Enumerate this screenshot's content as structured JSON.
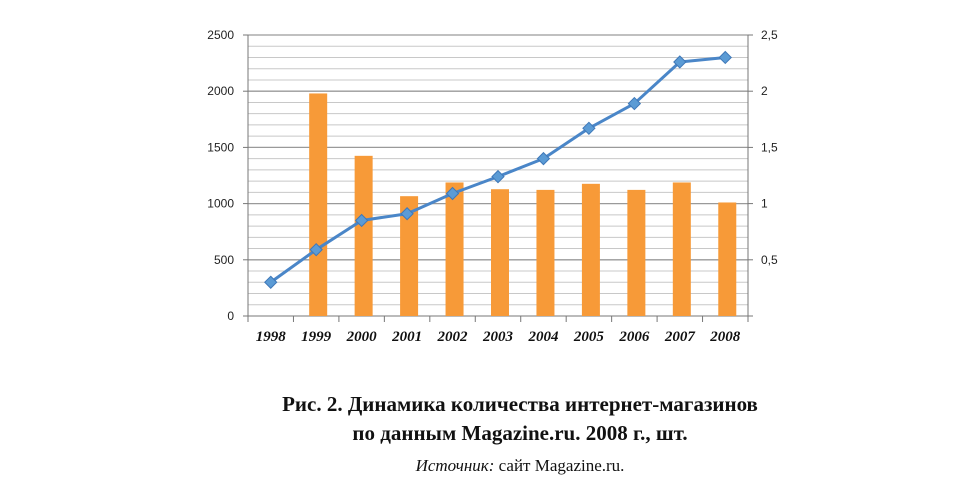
{
  "chart_data": {
    "type": "bar+line",
    "categories": [
      "1998",
      "1999",
      "2000",
      "2001",
      "2002",
      "2003",
      "2004",
      "2005",
      "2006",
      "2007",
      "2008"
    ],
    "series": [
      {
        "type": "bar",
        "axis": "left",
        "color": "#F79A38",
        "values": [
          0,
          1980,
          1425,
          1066,
          1188,
          1128,
          1122,
          1176,
          1122,
          1188,
          1010
        ]
      },
      {
        "type": "line",
        "axis": "right",
        "color": "#4A86C8",
        "marker": "diamond",
        "values": [
          0.3,
          0.59,
          0.85,
          0.91,
          1.09,
          1.24,
          1.4,
          1.67,
          1.89,
          2.26,
          2.3
        ]
      }
    ],
    "left_axis": {
      "ylim": [
        0,
        2500
      ],
      "ticks": [
        "0",
        "500",
        "1000",
        "1500",
        "2000",
        "2500"
      ]
    },
    "right_axis": {
      "ylim": [
        0,
        2.5
      ],
      "ticks": [
        "",
        "0,5",
        "1",
        "1,5",
        "2",
        "2,5"
      ]
    },
    "grid": true
  },
  "caption": {
    "line1": "Рис. 2. Динамика количества интернет-магазинов",
    "line2": "по данным Magazine.ru. 2008 г., шт.",
    "source_label": "Источник:",
    "source_text": " сайт Magazine.ru."
  }
}
